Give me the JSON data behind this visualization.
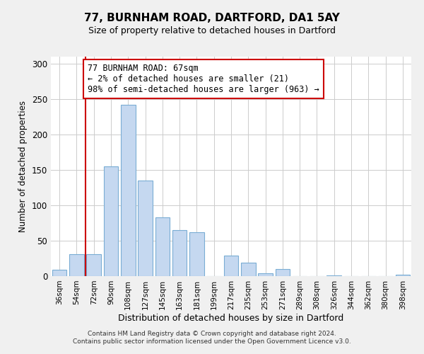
{
  "title": "77, BURNHAM ROAD, DARTFORD, DA1 5AY",
  "subtitle": "Size of property relative to detached houses in Dartford",
  "xlabel": "Distribution of detached houses by size in Dartford",
  "ylabel": "Number of detached properties",
  "categories": [
    "36sqm",
    "54sqm",
    "72sqm",
    "90sqm",
    "108sqm",
    "127sqm",
    "145sqm",
    "163sqm",
    "181sqm",
    "199sqm",
    "217sqm",
    "235sqm",
    "253sqm",
    "271sqm",
    "289sqm",
    "308sqm",
    "326sqm",
    "344sqm",
    "362sqm",
    "380sqm",
    "398sqm"
  ],
  "values": [
    9,
    31,
    31,
    155,
    242,
    135,
    83,
    65,
    62,
    0,
    29,
    19,
    4,
    10,
    0,
    0,
    1,
    0,
    0,
    0,
    2
  ],
  "bar_color": "#c5d8f0",
  "bar_edge_color": "#7aadd4",
  "property_line_color": "#cc0000",
  "annotation_line1": "77 BURNHAM ROAD: 67sqm",
  "annotation_line2": "← 2% of detached houses are smaller (21)",
  "annotation_line3": "98% of semi-detached houses are larger (963) →",
  "annotation_box_color": "#ffffff",
  "annotation_box_edge_color": "#cc0000",
  "ylim": [
    0,
    310
  ],
  "yticks": [
    0,
    50,
    100,
    150,
    200,
    250,
    300
  ],
  "footer_line1": "Contains HM Land Registry data © Crown copyright and database right 2024.",
  "footer_line2": "Contains public sector information licensed under the Open Government Licence v3.0.",
  "background_color": "#f0f0f0",
  "plot_bg_color": "#ffffff",
  "grid_color": "#cccccc"
}
